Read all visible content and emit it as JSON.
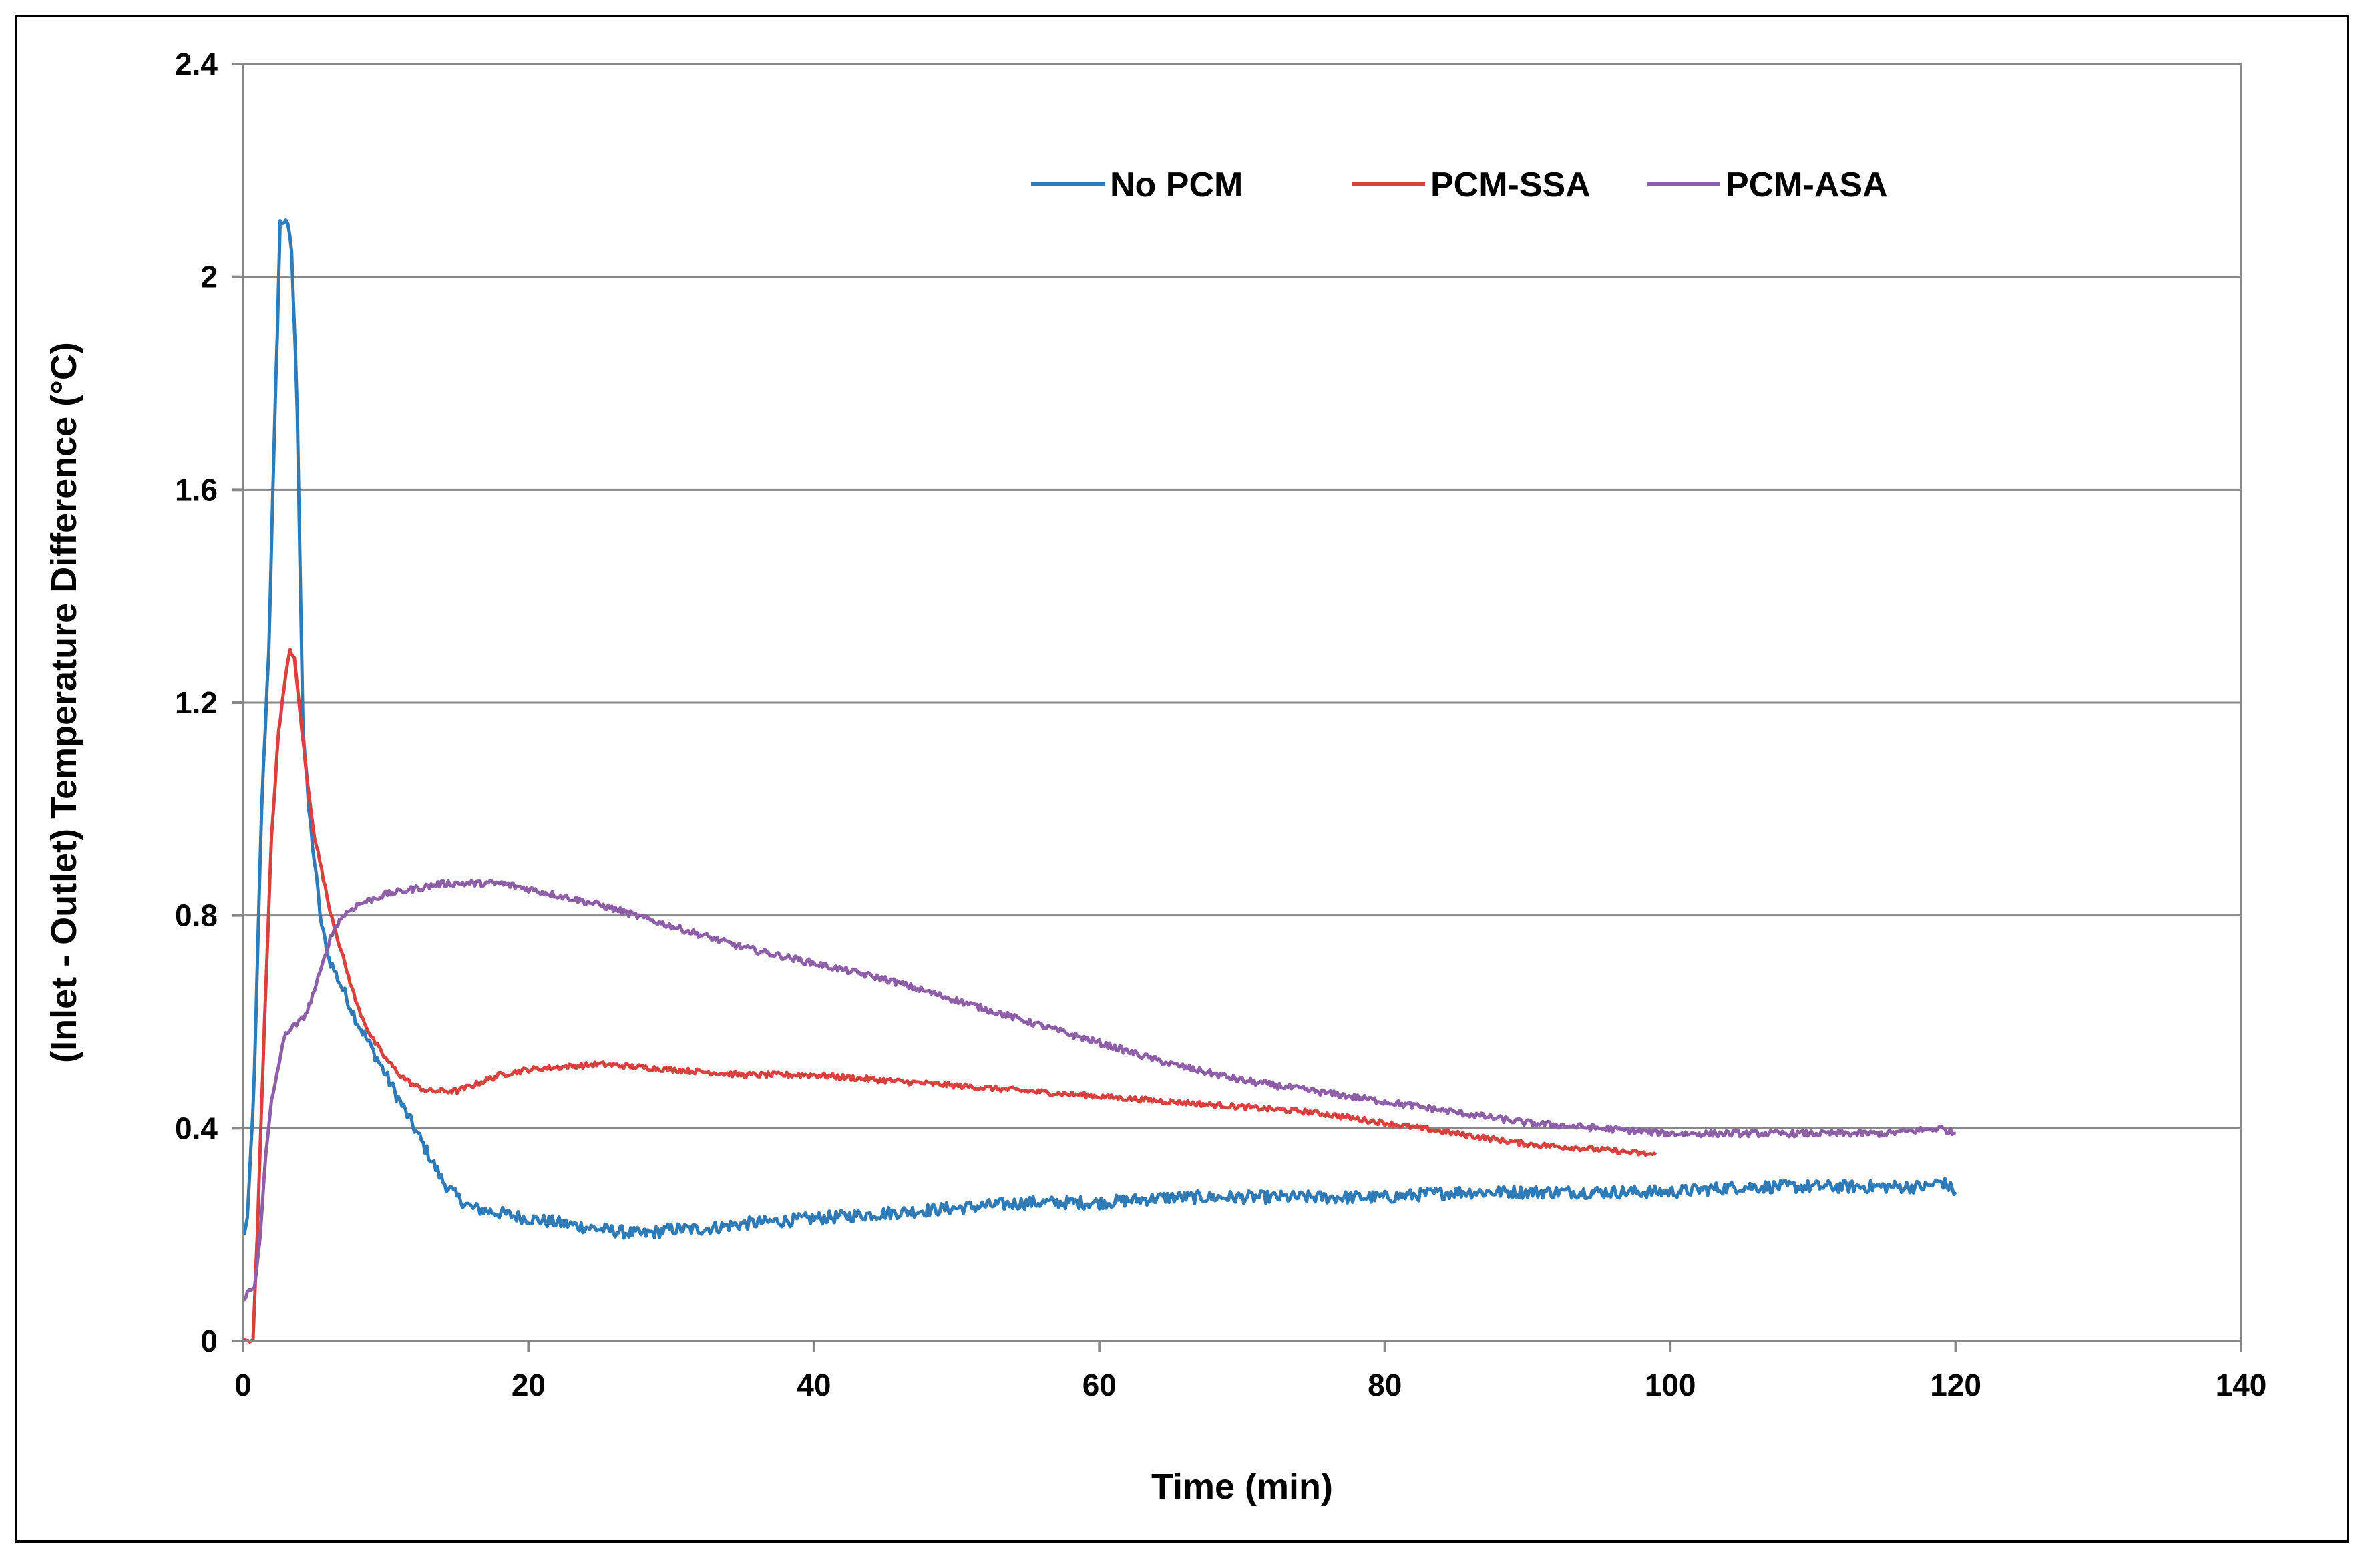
{
  "chart_data": {
    "type": "line",
    "title": "",
    "xlabel": "Time (min)",
    "ylabel": "(Inlet - Outlet) Temperature Difference (°C)",
    "xlim": [
      0,
      140
    ],
    "ylim": [
      0,
      2.4
    ],
    "xticks": [
      0,
      20,
      40,
      60,
      80,
      100,
      120,
      140
    ],
    "yticks": [
      0,
      0.4,
      0.8,
      1.2,
      1.6,
      2,
      2.4
    ],
    "ytick_labels": [
      "0",
      "0.4",
      "0.8",
      "1.2",
      "1.6",
      "2",
      "2.4"
    ],
    "grid": "horizontal",
    "legend_position": "top-center",
    "series": [
      {
        "name": "No PCM",
        "color": "#2e7bb8",
        "noise": 0.012,
        "x": [
          0,
          0.3,
          0.8,
          1.3,
          1.8,
          2.3,
          2.6,
          3.0,
          3.4,
          3.8,
          4.2,
          4.6,
          5.0,
          5.5,
          6,
          7,
          8,
          9,
          10,
          11,
          12,
          13,
          14,
          15,
          16,
          20,
          25,
          28,
          30,
          32,
          35,
          40,
          45,
          50,
          55,
          60,
          65,
          70,
          75,
          80,
          85,
          90,
          95,
          100,
          105,
          110,
          115,
          118,
          119,
          120
        ],
        "y": [
          0.2,
          0.22,
          0.5,
          1.0,
          1.3,
          1.8,
          2.1,
          2.11,
          2.05,
          1.75,
          1.15,
          1.0,
          0.9,
          0.78,
          0.72,
          0.66,
          0.6,
          0.55,
          0.5,
          0.45,
          0.4,
          0.35,
          0.3,
          0.27,
          0.25,
          0.23,
          0.21,
          0.2,
          0.21,
          0.21,
          0.22,
          0.23,
          0.24,
          0.25,
          0.26,
          0.26,
          0.27,
          0.27,
          0.27,
          0.27,
          0.28,
          0.28,
          0.28,
          0.28,
          0.29,
          0.29,
          0.29,
          0.29,
          0.3,
          0.28
        ]
      },
      {
        "name": "PCM-SSA",
        "color": "#d9413f",
        "noise": 0.005,
        "x": [
          0,
          0.7,
          1.0,
          1.5,
          2.0,
          2.5,
          3.0,
          3.3,
          3.6,
          4.0,
          4.5,
          5,
          6,
          7,
          8,
          9,
          10,
          11,
          12,
          13,
          14,
          15,
          16,
          18,
          20,
          25,
          30,
          35,
          40,
          45,
          50,
          55,
          60,
          65,
          70,
          75,
          80,
          85,
          90,
          95,
          99
        ],
        "y": [
          0,
          0.0,
          0.2,
          0.6,
          0.95,
          1.15,
          1.25,
          1.3,
          1.28,
          1.18,
          1.05,
          0.95,
          0.82,
          0.72,
          0.63,
          0.57,
          0.53,
          0.5,
          0.48,
          0.47,
          0.47,
          0.47,
          0.48,
          0.5,
          0.51,
          0.52,
          0.51,
          0.5,
          0.5,
          0.49,
          0.48,
          0.47,
          0.46,
          0.45,
          0.44,
          0.43,
          0.41,
          0.39,
          0.37,
          0.36,
          0.35
        ]
      },
      {
        "name": "PCM-ASA",
        "color": "#8e5ea8",
        "noise": 0.006,
        "x": [
          0,
          0.3,
          0.8,
          1.2,
          1.6,
          2,
          2.5,
          3,
          3.5,
          4,
          4.5,
          5,
          5.5,
          6,
          6.5,
          7,
          8,
          9,
          10,
          12,
          14,
          15,
          16,
          18,
          20,
          25,
          30,
          35,
          40,
          45,
          50,
          55,
          60,
          65,
          70,
          75,
          80,
          85,
          90,
          95,
          100,
          105,
          110,
          115,
          119,
          120
        ],
        "y": [
          0.08,
          0.09,
          0.1,
          0.2,
          0.35,
          0.45,
          0.52,
          0.58,
          0.59,
          0.6,
          0.62,
          0.66,
          0.7,
          0.75,
          0.78,
          0.8,
          0.82,
          0.83,
          0.84,
          0.85,
          0.86,
          0.86,
          0.86,
          0.86,
          0.85,
          0.82,
          0.78,
          0.74,
          0.71,
          0.68,
          0.64,
          0.6,
          0.56,
          0.52,
          0.49,
          0.47,
          0.45,
          0.43,
          0.41,
          0.4,
          0.39,
          0.39,
          0.39,
          0.39,
          0.4,
          0.39
        ]
      }
    ]
  }
}
